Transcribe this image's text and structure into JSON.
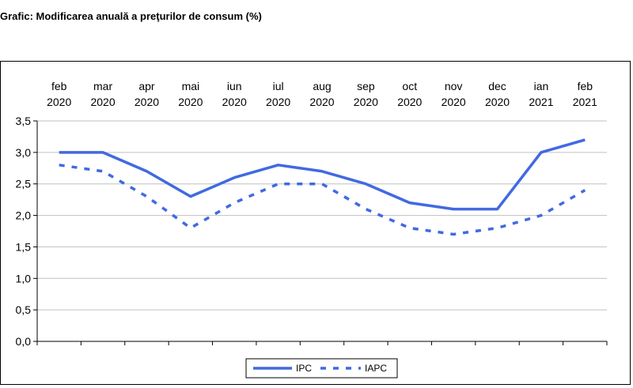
{
  "title": "Grafic: Modificarea anuală a preţurilor de consum (%)",
  "chart_data": {
    "type": "line",
    "title": "Grafic: Modificarea anuală a preţurilor de consum (%)",
    "categories": [
      [
        "feb",
        "2020"
      ],
      [
        "mar",
        "2020"
      ],
      [
        "apr",
        "2020"
      ],
      [
        "mai",
        "2020"
      ],
      [
        "iun",
        "2020"
      ],
      [
        "iul",
        "2020"
      ],
      [
        "aug",
        "2020"
      ],
      [
        "sep",
        "2020"
      ],
      [
        "oct",
        "2020"
      ],
      [
        "nov",
        "2020"
      ],
      [
        "dec",
        "2020"
      ],
      [
        "ian",
        "2021"
      ],
      [
        "feb",
        "2021"
      ]
    ],
    "x_axis_position": "top",
    "ylim": [
      0,
      3.5
    ],
    "y_ticks": [
      "0,0",
      "0,5",
      "1,0",
      "1,5",
      "2,0",
      "2,5",
      "3,0",
      "3,5"
    ],
    "y_tick_values": [
      0,
      0.5,
      1.0,
      1.5,
      2.0,
      2.5,
      3.0,
      3.5
    ],
    "grid": true,
    "legend_position": "bottom",
    "series": [
      {
        "name": "IPC",
        "style": "solid",
        "color": "#4169e1",
        "values": [
          3.0,
          3.0,
          2.7,
          2.3,
          2.6,
          2.8,
          2.7,
          2.5,
          2.2,
          2.1,
          2.1,
          3.0,
          3.2
        ]
      },
      {
        "name": "IAPC",
        "style": "dashed",
        "color": "#4169e1",
        "values": [
          2.8,
          2.7,
          2.3,
          1.8,
          2.2,
          2.5,
          2.5,
          2.1,
          1.8,
          1.7,
          1.8,
          2.0,
          2.4
        ]
      }
    ]
  }
}
